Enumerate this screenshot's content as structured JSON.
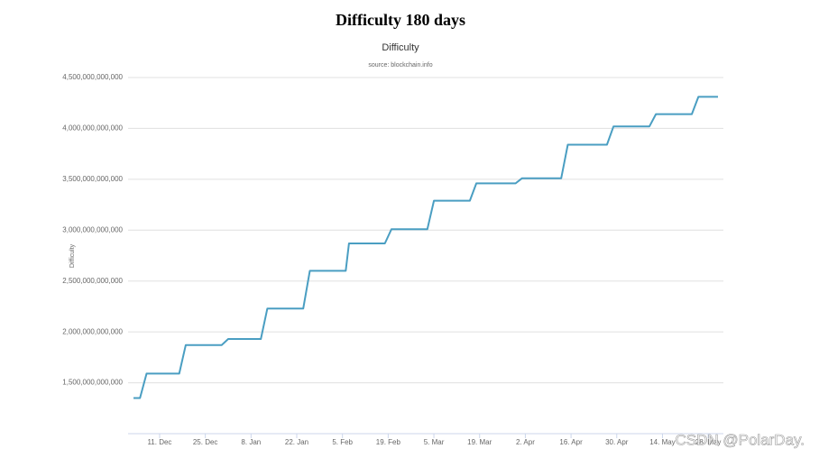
{
  "page_title": "Difficulty 180 days",
  "watermark": "CSDN @PolarDay.",
  "chart_data": {
    "type": "line",
    "title": "Difficulty",
    "subtitle": "source: blockchain.info",
    "y_label": "Difficulty",
    "x": [
      "3. Dec",
      "5. Dec",
      "7. Dec",
      "17. Dec",
      "19. Dec",
      "30. Dec",
      "1. Jan",
      "11. Jan",
      "13. Jan",
      "24. Jan",
      "26. Jan",
      "6. Feb",
      "7. Feb",
      "18. Feb",
      "20. Feb",
      "3. Mar",
      "5. Mar",
      "16. Mar",
      "18. Mar",
      "30. Mar",
      "1. Apr",
      "13. Apr",
      "15. Apr",
      "27. Apr",
      "29. Apr",
      "10. May",
      "12. May",
      "23. May",
      "25. May",
      "31. May"
    ],
    "series": [
      {
        "name": "Difficulty",
        "color": "#4a9ec2",
        "values": [
          1350000000000,
          1350000000000,
          1590000000000,
          1590000000000,
          1870000000000,
          1870000000000,
          1930000000000,
          1930000000000,
          2230000000000,
          2230000000000,
          2600000000000,
          2600000000000,
          2870000000000,
          2870000000000,
          3010000000000,
          3010000000000,
          3290000000000,
          3290000000000,
          3460000000000,
          3460000000000,
          3510000000000,
          3510000000000,
          3840000000000,
          3840000000000,
          4020000000000,
          4020000000000,
          4140000000000,
          4140000000000,
          4310000000000,
          4310000000000
        ]
      }
    ],
    "xlim": [
      "3. Dec",
      "31. May"
    ],
    "xticks": [
      "11. Dec",
      "25. Dec",
      "8. Jan",
      "22. Jan",
      "5. Feb",
      "19. Feb",
      "5. Mar",
      "19. Mar",
      "2. Apr",
      "16. Apr",
      "30. Apr",
      "14. May",
      "28. May"
    ],
    "ylim": [
      1000000000000,
      4500000000000
    ],
    "yticks": [
      {
        "value": 1500000000000,
        "label": "1,500,000,000,000"
      },
      {
        "value": 2000000000000,
        "label": "2,000,000,000,000"
      },
      {
        "value": 2500000000000,
        "label": "2,500,000,000,000"
      },
      {
        "value": 3000000000000,
        "label": "3,000,000,000,000"
      },
      {
        "value": 3500000000000,
        "label": "3,500,000,000,000"
      },
      {
        "value": 4000000000000,
        "label": "4,000,000,000,000"
      },
      {
        "value": 4500000000000,
        "label": "4,500,000,000,000"
      }
    ],
    "grid": true
  }
}
